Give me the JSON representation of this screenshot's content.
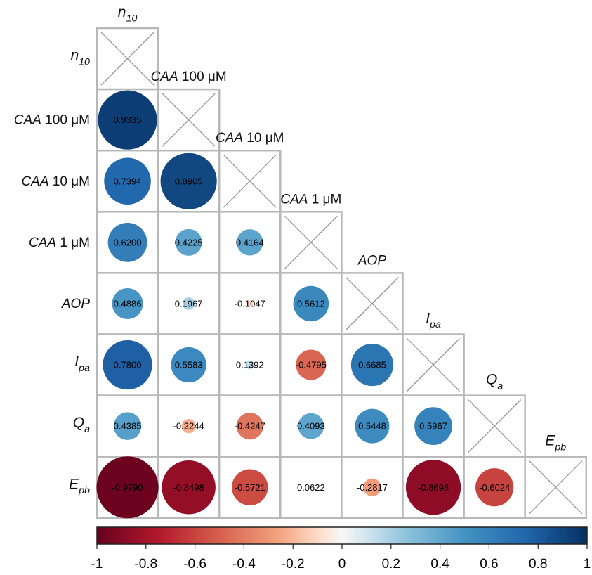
{
  "chart_data": {
    "type": "heatmap",
    "variables": [
      {
        "italic": "n",
        "sub": "10",
        "rest": ""
      },
      {
        "italic": "CAA",
        "sub": "",
        "rest": " 100 μM"
      },
      {
        "italic": "CAA",
        "sub": "",
        "rest": " 10 μM"
      },
      {
        "italic": "CAA",
        "sub": "",
        "rest": " 1 μM"
      },
      {
        "italic": "AOP",
        "sub": "",
        "rest": ""
      },
      {
        "italic": "I",
        "sub": "pa",
        "rest": ""
      },
      {
        "italic": "Q",
        "sub": "a",
        "rest": ""
      },
      {
        "italic": "E",
        "sub": "pb",
        "rest": ""
      }
    ],
    "cells": [
      {
        "row": 1,
        "col": 0,
        "value": 0.9335,
        "label": "0.9335"
      },
      {
        "row": 2,
        "col": 0,
        "value": 0.7394,
        "label": "0.7394"
      },
      {
        "row": 2,
        "col": 1,
        "value": 0.8905,
        "label": "0.8905"
      },
      {
        "row": 3,
        "col": 0,
        "value": 0.62,
        "label": "0.6200"
      },
      {
        "row": 3,
        "col": 1,
        "value": 0.4225,
        "label": "0.4225"
      },
      {
        "row": 3,
        "col": 2,
        "value": 0.4164,
        "label": "0.4164"
      },
      {
        "row": 4,
        "col": 0,
        "value": 0.4886,
        "label": "0.4886"
      },
      {
        "row": 4,
        "col": 1,
        "value": 0.1967,
        "label": "0.1967"
      },
      {
        "row": 4,
        "col": 2,
        "value": -0.1047,
        "label": "-0.1047"
      },
      {
        "row": 4,
        "col": 3,
        "value": 0.5612,
        "label": "0.5612"
      },
      {
        "row": 5,
        "col": 0,
        "value": 0.78,
        "label": "0.7800"
      },
      {
        "row": 5,
        "col": 1,
        "value": 0.5583,
        "label": "0.5583"
      },
      {
        "row": 5,
        "col": 2,
        "value": 0.1392,
        "label": "0.1392"
      },
      {
        "row": 5,
        "col": 3,
        "value": -0.4795,
        "label": "-0.4795"
      },
      {
        "row": 5,
        "col": 4,
        "value": 0.6685,
        "label": "0.6685"
      },
      {
        "row": 6,
        "col": 0,
        "value": 0.4385,
        "label": "0.4385"
      },
      {
        "row": 6,
        "col": 1,
        "value": -0.2244,
        "label": "-0.2244"
      },
      {
        "row": 6,
        "col": 2,
        "value": -0.4247,
        "label": "-0.4247"
      },
      {
        "row": 6,
        "col": 3,
        "value": 0.4093,
        "label": "0.4093"
      },
      {
        "row": 6,
        "col": 4,
        "value": 0.5448,
        "label": "0.5448"
      },
      {
        "row": 6,
        "col": 5,
        "value": 0.5967,
        "label": "0.5967"
      },
      {
        "row": 7,
        "col": 0,
        "value": -0.979,
        "label": "-0.9790"
      },
      {
        "row": 7,
        "col": 1,
        "value": -0.8498,
        "label": "-0.8498"
      },
      {
        "row": 7,
        "col": 2,
        "value": -0.5721,
        "label": "-0.5721"
      },
      {
        "row": 7,
        "col": 3,
        "value": 0.0622,
        "label": "0.0622"
      },
      {
        "row": 7,
        "col": 4,
        "value": -0.2817,
        "label": "-0.2817"
      },
      {
        "row": 7,
        "col": 5,
        "value": -0.8698,
        "label": "-0.8698"
      },
      {
        "row": 7,
        "col": 6,
        "value": -0.6024,
        "label": "-0.6024"
      }
    ],
    "colorbar": {
      "range": [
        -1,
        1
      ],
      "ticks": [
        "-1",
        "-0.8",
        "-0.6",
        "-0.4",
        "-0.2",
        "0",
        "0.2",
        "0.4",
        "0.6",
        "0.8",
        "1"
      ],
      "stops": [
        {
          "v": -1,
          "c": "#67001f"
        },
        {
          "v": -0.75,
          "c": "#b2182b"
        },
        {
          "v": -0.5,
          "c": "#d6604d"
        },
        {
          "v": -0.25,
          "c": "#f4a582"
        },
        {
          "v": -0.1,
          "c": "#fddbc7"
        },
        {
          "v": 0,
          "c": "#f7f7f7"
        },
        {
          "v": 0.1,
          "c": "#d1e5f0"
        },
        {
          "v": 0.25,
          "c": "#92c5de"
        },
        {
          "v": 0.5,
          "c": "#4393c3"
        },
        {
          "v": 0.75,
          "c": "#2166ac"
        },
        {
          "v": 1,
          "c": "#053061"
        }
      ]
    },
    "grid_color": "#b8b8b8",
    "diagonal_cross_color": "#8c8c8c"
  }
}
